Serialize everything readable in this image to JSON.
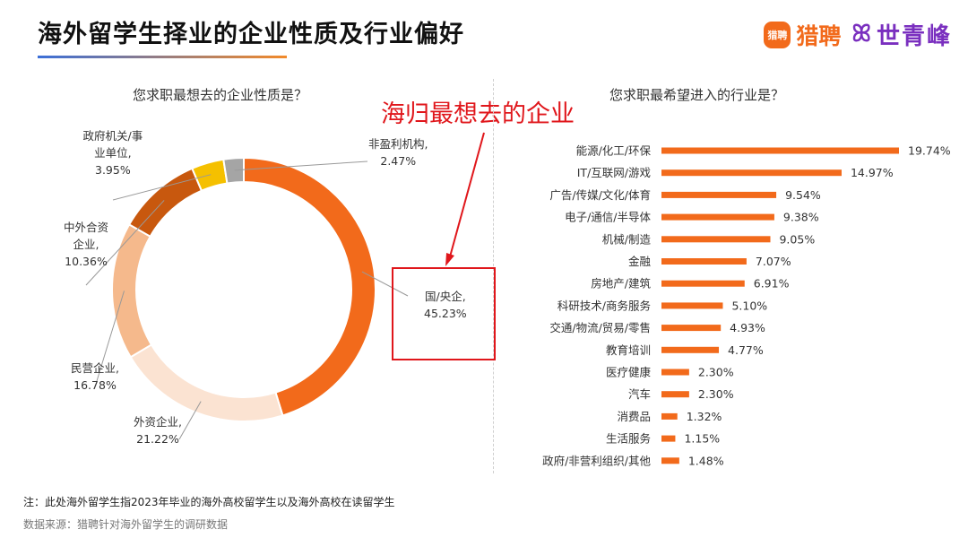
{
  "header": {
    "title": "海外留学生择业的企业性质及行业偏好",
    "logo_badge": "猎聘",
    "logo_name": "猎聘",
    "logo_mark": "ꕤ",
    "logo_partner": "世青峰"
  },
  "annotation": {
    "red_text": "海归最想去的企业"
  },
  "footer": {
    "note": "注：此处海外留学生指2023年毕业的海外高校留学生以及海外高校在读留学生",
    "source": "数据来源：猎聘针对海外留学生的调研数据"
  },
  "colors": {
    "accent": "#f26a1b",
    "bar": "#f26a1b",
    "highlight": "#e0161b"
  },
  "chart_data": [
    {
      "type": "pie",
      "donut": true,
      "title": "您求职最想去的企业性质是？",
      "slices": [
        {
          "name": "国/央企",
          "value": 45.23,
          "label": "国/央企,\n45.23%",
          "color": "#f26a1b"
        },
        {
          "name": "外资企业",
          "value": 21.22,
          "label": "外资企业,\n21.22%",
          "color": "#fbe3d2"
        },
        {
          "name": "民营企业",
          "value": 16.78,
          "label": "民营企业,\n16.78%",
          "color": "#f5b98c"
        },
        {
          "name": "中外合资企业",
          "value": 10.36,
          "label": "中外合资\n企业,\n10.36%",
          "color": "#c8580e"
        },
        {
          "name": "政府机关/事业单位",
          "value": 3.95,
          "label": "政府机关/事\n业单位,\n3.95%",
          "color": "#f5c000"
        },
        {
          "name": "非盈利机构",
          "value": 2.47,
          "label": "非盈利机构,\n2.47%",
          "color": "#a5a5a5"
        }
      ]
    },
    {
      "type": "bar",
      "orientation": "horizontal",
      "title": "您求职最希望进入的行业是？",
      "categories": [
        "能源/化工/环保",
        "IT/互联网/游戏",
        "广告/传媒/文化/体育",
        "电子/通信/半导体",
        "机械/制造",
        "金融",
        "房地产/建筑",
        "科研技术/商务服务",
        "交通/物流/贸易/零售",
        "教育培训",
        "医疗健康",
        "汽车",
        "消费品",
        "生活服务",
        "政府/非营利组织/其他"
      ],
      "values": [
        19.74,
        14.97,
        9.54,
        9.38,
        9.05,
        7.07,
        6.91,
        5.1,
        4.93,
        4.77,
        2.3,
        2.3,
        1.32,
        1.15,
        1.48
      ],
      "value_labels": [
        "19.74%",
        "14.97%",
        "9.54%",
        "9.38%",
        "9.05%",
        "7.07%",
        "6.91%",
        "5.10%",
        "4.93%",
        "4.77%",
        "2.30%",
        "2.30%",
        "1.32%",
        "1.15%",
        "1.48%"
      ],
      "unit": "%"
    }
  ]
}
